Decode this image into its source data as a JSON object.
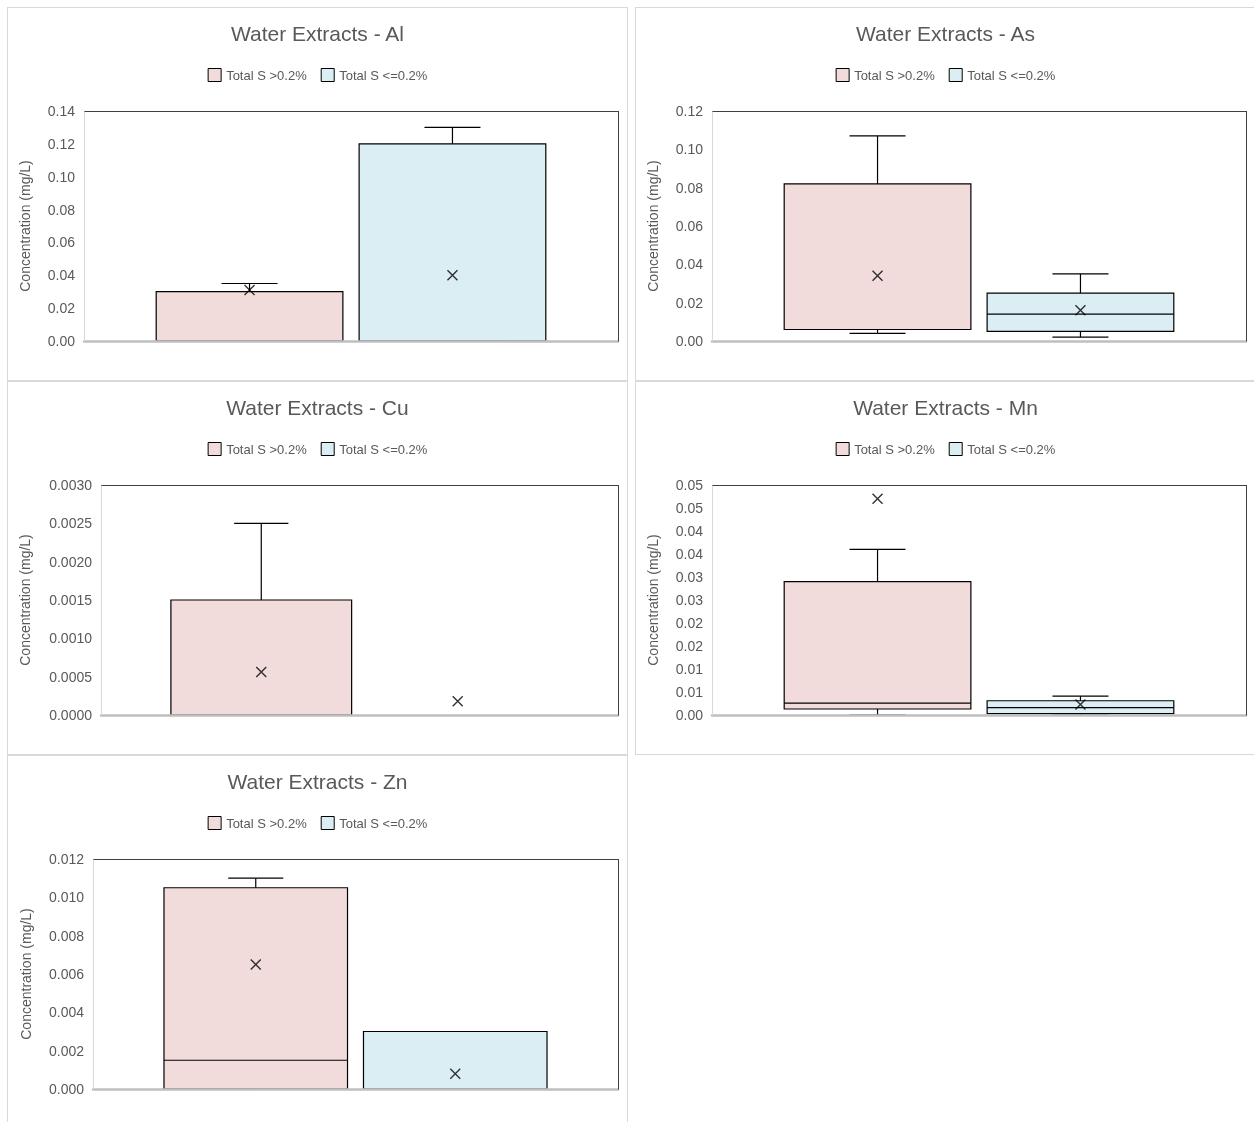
{
  "chart_data": [
    {
      "type": "box",
      "title": "Water Extracts - Al",
      "ylabel": "Concentration (mg/L)",
      "categories": [
        null
      ],
      "series": [
        {
          "name": "Total S >0.2%",
          "color": "#f2dcdb",
          "boxes": [
            {
              "low": 0,
              "q1": 0,
              "median": 0,
              "q3": 0.03,
              "high": 0.035,
              "mean": 0.031
            }
          ]
        },
        {
          "name": "Total S <=0.2%",
          "color": "#daeef3",
          "boxes": [
            {
              "low": 0,
              "q1": 0,
              "median": 0,
              "q3": 0.12,
              "high": 0.13,
              "mean": 0.04
            }
          ]
        }
      ],
      "ylim": [
        0,
        0.14
      ],
      "yticks": [
        {
          "value": 0,
          "label": "0.00"
        },
        0.02,
        0.04,
        0.06,
        0.08,
        {
          "value": 0.1,
          "label": "0.10"
        },
        0.12,
        0.14
      ],
      "legend": "top",
      "grid": false,
      "tick_labels": "y",
      "marker": "cross"
    },
    {
      "type": "box",
      "title": "Water Extracts - As",
      "ylabel": "Concentration (mg/L)",
      "categories": [
        null
      ],
      "series": [
        {
          "name": "Total S >0.2%",
          "color": "#f2dcdb",
          "boxes": [
            {
              "low": 0.004,
              "q1": 0.006,
              "median": 0.006,
              "q3": 0.082,
              "high": 0.107,
              "mean": 0.034
            }
          ]
        },
        {
          "name": "Total S <=0.2%",
          "color": "#daeef3",
          "boxes": [
            {
              "low": 0.002,
              "q1": 0.005,
              "median": 0.014,
              "q3": 0.025,
              "high": 0.035,
              "mean": 0.016
            }
          ]
        }
      ],
      "ylim": [
        0,
        0.12
      ],
      "yticks": [
        {
          "value": 0,
          "label": "0.00"
        },
        0.02,
        0.04,
        0.06,
        0.08,
        {
          "value": 0.1,
          "label": "0.10"
        },
        0.12
      ],
      "legend": "top",
      "grid": false,
      "tick_labels": "y",
      "marker": "cross"
    },
    {
      "type": "box",
      "title": "Water Extracts - Cu",
      "ylabel": "Concentration (mg/L)",
      "categories": [
        null
      ],
      "series": [
        {
          "name": "Total S >0.2%",
          "color": "#f2dcdb",
          "boxes": [
            {
              "low": 0,
              "q1": 0,
              "median": 0,
              "q3": 0.0015,
              "high": 0.0025,
              "mean": 0.00056
            }
          ]
        },
        {
          "name": "Total S <=0.2%",
          "color": "#daeef3",
          "boxes": [
            {
              "low": 0,
              "q1": 0,
              "median": 0,
              "q3": 0,
              "high": 0,
              "mean": 0.00018
            }
          ]
        }
      ],
      "ylim": [
        0,
        0.003
      ],
      "yticks": [
        {
          "value": 0,
          "label": "0.0000"
        },
        0.0005,
        {
          "value": 0.001,
          "label": "0.0010"
        },
        0.0015,
        {
          "value": 0.002,
          "label": "0.0020"
        },
        0.0025,
        {
          "value": 0.003,
          "label": "0.0030"
        }
      ],
      "legend": "top",
      "grid": false,
      "tick_labels": "y",
      "marker": "cross"
    },
    {
      "type": "box",
      "title": "Water Extracts - Mn",
      "ylabel": "Concentration (mg/L)",
      "categories": [
        null
      ],
      "series": [
        {
          "name": "Total S >0.2%",
          "color": "#f2dcdb",
          "boxes": [
            {
              "low": 0,
              "q1": 0.0013,
              "median": 0.0026,
              "q3": 0.029,
              "high": 0.036,
              "mean": 0.047
            }
          ]
        },
        {
          "name": "Total S <=0.2%",
          "color": "#daeef3",
          "boxes": [
            {
              "low": 0,
              "q1": 0.0003,
              "median": 0.0016,
              "q3": 0.0031,
              "high": 0.0041,
              "mean": 0.0023
            }
          ]
        }
      ],
      "ylim": [
        0,
        0.05
      ],
      "yticks": [
        {
          "value": 0,
          "label": "0.00"
        },
        {
          "value": 0.005,
          "label": "0.01"
        },
        0.01,
        {
          "value": 0.015,
          "label": "0.02"
        },
        0.02,
        {
          "value": 0.025,
          "label": "0.03"
        },
        0.03,
        {
          "value": 0.035,
          "label": "0.04"
        },
        0.04,
        {
          "value": 0.045,
          "label": "0.05"
        },
        0.05
      ],
      "legend": "top",
      "grid": false,
      "tick_labels": "y",
      "marker": "cross"
    },
    {
      "type": "box",
      "title": "Water Extracts - Zn",
      "ylabel": "Concentration (mg/L)",
      "categories": [
        null
      ],
      "series": [
        {
          "name": "Total S >0.2%",
          "color": "#f2dcdb",
          "boxes": [
            {
              "low": 0,
              "q1": 0,
              "median": 0.0015,
              "q3": 0.0105,
              "high": 0.011,
              "mean": 0.0065
            }
          ]
        },
        {
          "name": "Total S <=0.2%",
          "color": "#daeef3",
          "boxes": [
            {
              "low": 0,
              "q1": 0,
              "median": 0,
              "q3": 0.003,
              "high": 0.003,
              "mean": 0.0008
            }
          ]
        }
      ],
      "ylim": [
        0,
        0.012
      ],
      "yticks": [
        {
          "value": 0,
          "label": "0.000"
        },
        0.002,
        0.004,
        0.006,
        0.008,
        {
          "value": 0.01,
          "label": "0.010"
        },
        0.012
      ],
      "legend": "top",
      "grid": false,
      "tick_labels": "y",
      "marker": "cross"
    }
  ]
}
